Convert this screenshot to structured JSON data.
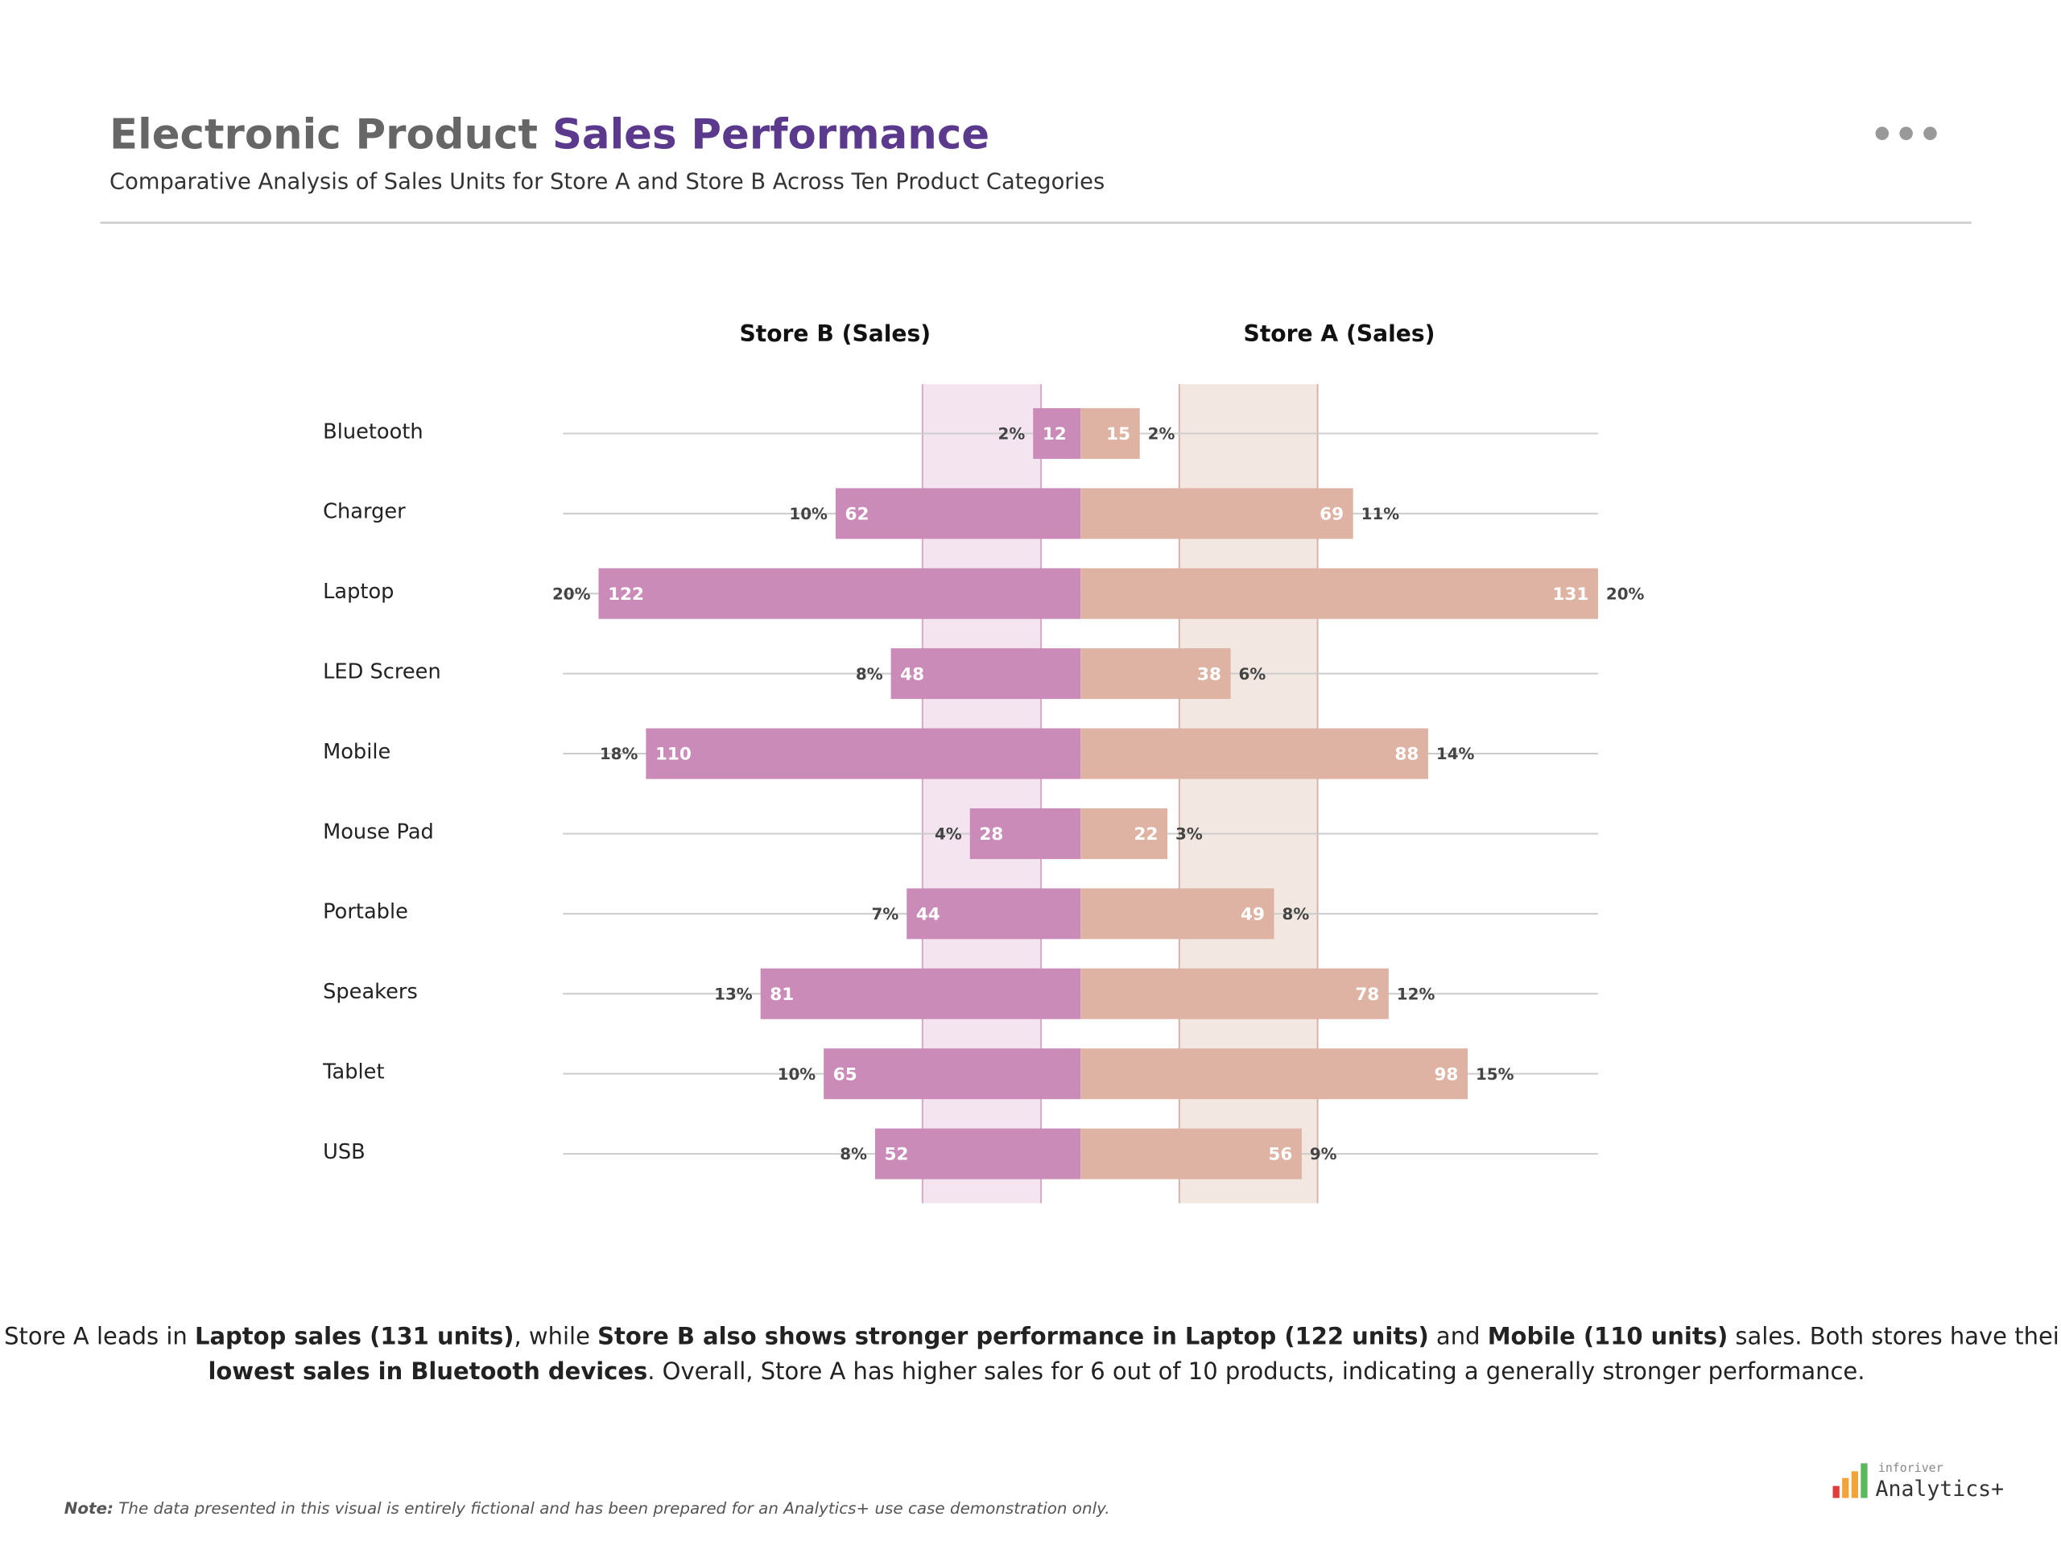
{
  "header": {
    "title_parts": [
      {
        "text": "Electronic Product ",
        "color": "#666666"
      },
      {
        "text": "Sales Performance",
        "color": "#5b3a8e"
      }
    ],
    "subtitle": "Comparative Analysis of Sales Units for Store A and Store B Across Ten Product Categories"
  },
  "chart_data": {
    "type": "butterfly-bar",
    "categories": [
      "Bluetooth",
      "Charger",
      "Laptop",
      "LED Screen",
      "Mobile",
      "Mouse Pad",
      "Portable",
      "Speakers",
      "Tablet",
      "USB"
    ],
    "xlim": [
      0,
      131
    ],
    "series": [
      {
        "name": "Store B (Sales)",
        "side": "left",
        "color": "#cb8bb8",
        "band": [
          10,
          40
        ],
        "band_color": "#f4e4f0",
        "band_border": "#d9a9c9",
        "values": [
          12,
          62,
          122,
          48,
          110,
          28,
          44,
          81,
          65,
          52
        ],
        "shares": [
          "2%",
          "10%",
          "20%",
          "8%",
          "18%",
          "4%",
          "7%",
          "13%",
          "10%",
          "8%"
        ]
      },
      {
        "name": "Store A (Sales)",
        "side": "right",
        "color": "#dfb3a3",
        "band": [
          25,
          60
        ],
        "band_color": "#f3e7e1",
        "band_border": "#d6b3a8",
        "values": [
          15,
          69,
          131,
          38,
          88,
          22,
          49,
          78,
          98,
          56
        ],
        "shares": [
          "2%",
          "11%",
          "20%",
          "6%",
          "14%",
          "3%",
          "8%",
          "12%",
          "15%",
          "9%"
        ]
      }
    ]
  },
  "summary": {
    "lines": [
      [
        {
          "text": "Store A leads in ",
          "bold": false
        },
        {
          "text": "Laptop sales (131 units)",
          "bold": true
        },
        {
          "text": ", while ",
          "bold": false
        },
        {
          "text": "Store B also shows stronger performance in Laptop (122 units)",
          "bold": true
        },
        {
          "text": " and ",
          "bold": false
        },
        {
          "text": "Mobile (110 units)",
          "bold": true
        },
        {
          "text": " sales. Both stores have their",
          "bold": false
        }
      ],
      [
        {
          "text": "lowest sales in Bluetooth devices",
          "bold": true
        },
        {
          "text": ". Overall, Store A has higher sales for 6 out of 10 products, indicating a generally stronger performance.",
          "bold": false
        }
      ]
    ]
  },
  "footer": {
    "note_label": "Note:",
    "note": " The data presented in this visual is entirely fictional and has been prepared for an Analytics+ use case demonstration only.",
    "brand_small": "inforiver",
    "brand": "Analytics+"
  }
}
